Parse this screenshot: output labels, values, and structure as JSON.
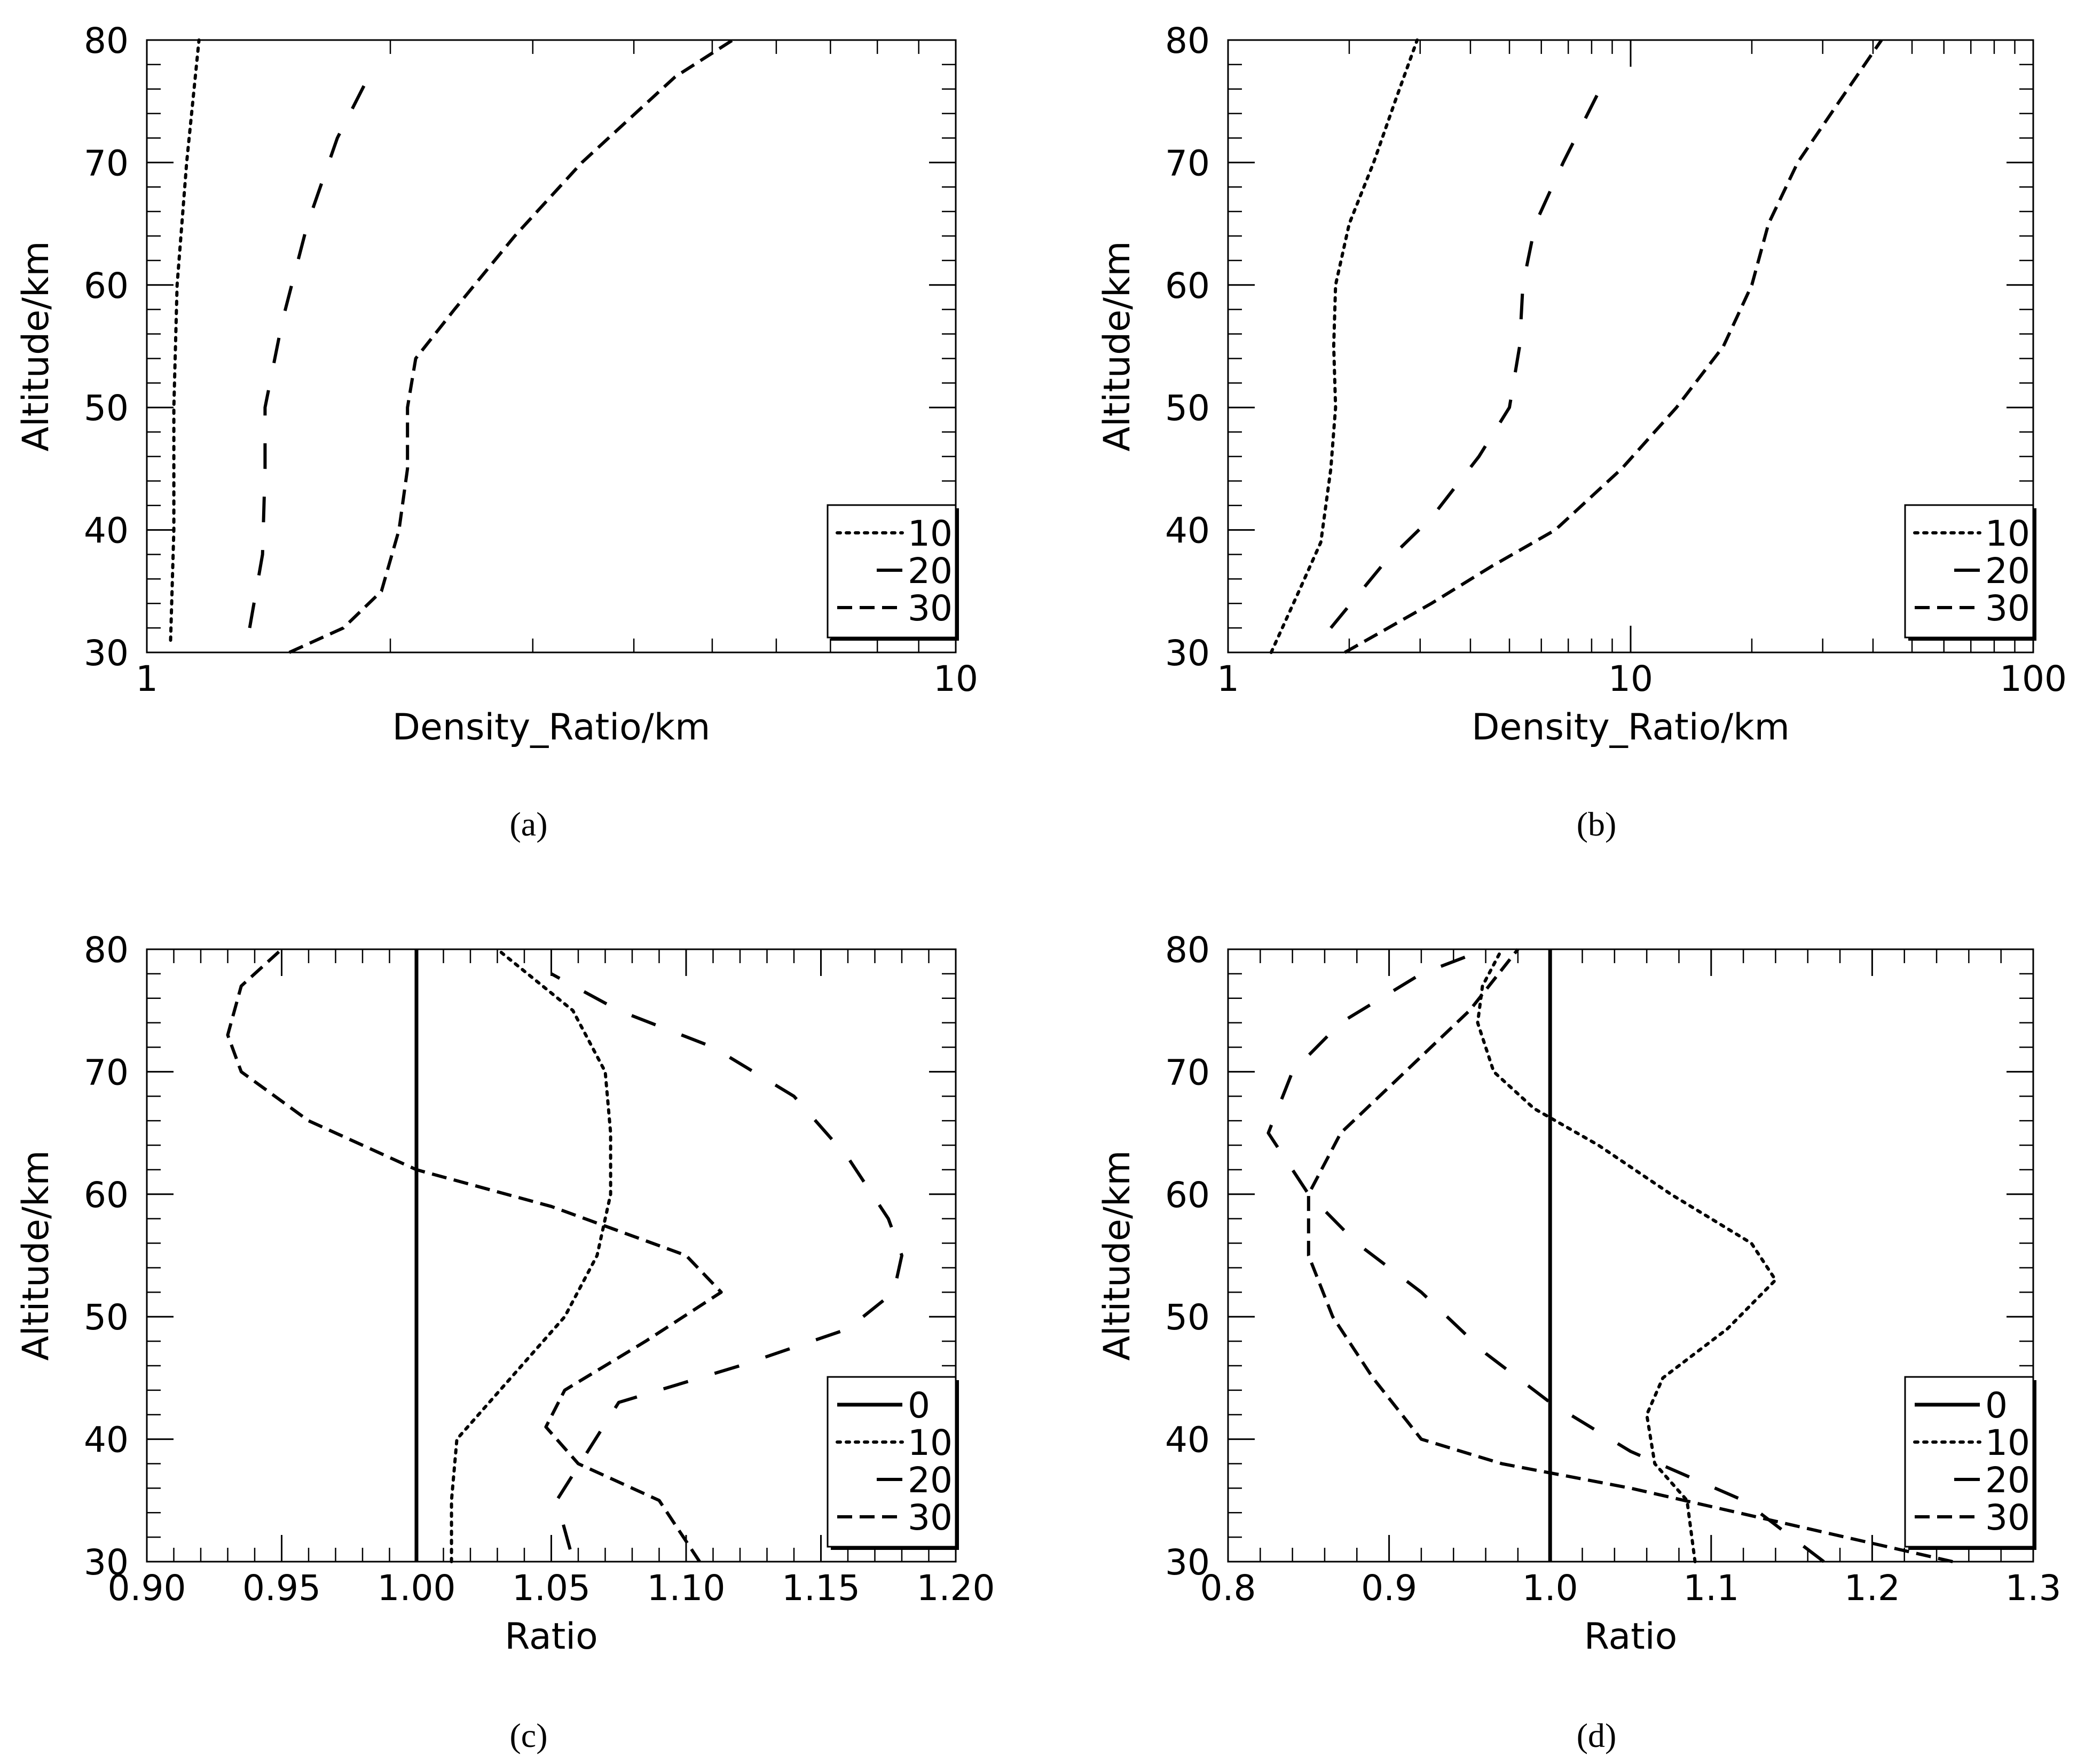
{
  "figure": {
    "panel_labels": [
      "(a)",
      "(b)",
      "(c)",
      "(d)"
    ],
    "panel_letters": [
      "a",
      "b",
      "c",
      "d"
    ]
  },
  "chart_data": [
    {
      "id": "a",
      "type": "line",
      "title": "",
      "xlabel": "Density_Ratio/km",
      "ylabel": "Altitude/km",
      "xscale": "log",
      "xlim": [
        1,
        10
      ],
      "ylim": [
        30,
        80
      ],
      "xticks": [
        1,
        10
      ],
      "xtick_labels": [
        "1",
        "10"
      ],
      "yticks": [
        30,
        40,
        50,
        60,
        70,
        80
      ],
      "ytick_labels": [
        "30",
        "40",
        "50",
        "60",
        "70",
        "80"
      ],
      "legend_position": "bottom-right",
      "grid": false,
      "series": [
        {
          "name": "10",
          "style": "dotted",
          "points": [
            [
              1.07,
              31
            ],
            [
              1.08,
              40
            ],
            [
              1.08,
              50
            ],
            [
              1.09,
              60
            ],
            [
              1.12,
              70
            ],
            [
              1.16,
              80
            ]
          ]
        },
        {
          "name": "20",
          "style": "long-dash",
          "points": [
            [
              1.34,
              32
            ],
            [
              1.39,
              38
            ],
            [
              1.4,
              45
            ],
            [
              1.4,
              50
            ],
            [
              1.47,
              57
            ],
            [
              1.58,
              65
            ],
            [
              1.72,
              72
            ],
            [
              1.88,
              77
            ]
          ]
        },
        {
          "name": "30",
          "style": "dashed",
          "points": [
            [
              1.5,
              30
            ],
            [
              1.75,
              32
            ],
            [
              1.95,
              35
            ],
            [
              2.05,
              40
            ],
            [
              2.1,
              45
            ],
            [
              2.1,
              50
            ],
            [
              2.15,
              54
            ],
            [
              2.4,
              58
            ],
            [
              2.85,
              64
            ],
            [
              3.45,
              70
            ],
            [
              4.5,
              77
            ],
            [
              5.3,
              80
            ]
          ]
        }
      ]
    },
    {
      "id": "b",
      "type": "line",
      "title": "",
      "xlabel": "Density_Ratio/km",
      "ylabel": "Altitude/km",
      "xscale": "log",
      "xlim": [
        1,
        100
      ],
      "ylim": [
        30,
        80
      ],
      "xticks": [
        1,
        10,
        100
      ],
      "xtick_labels": [
        "1",
        "10",
        "100"
      ],
      "yticks": [
        30,
        40,
        50,
        60,
        70,
        80
      ],
      "ytick_labels": [
        "30",
        "40",
        "50",
        "60",
        "70",
        "80"
      ],
      "legend_position": "bottom-right",
      "grid": false,
      "series": [
        {
          "name": "10",
          "style": "dotted",
          "points": [
            [
              1.28,
              30
            ],
            [
              1.5,
              35
            ],
            [
              1.7,
              39
            ],
            [
              1.8,
              45
            ],
            [
              1.85,
              50
            ],
            [
              1.83,
              55
            ],
            [
              1.85,
              60
            ],
            [
              2.0,
              65
            ],
            [
              2.3,
              70
            ],
            [
              2.6,
              75
            ],
            [
              2.95,
              80
            ]
          ]
        },
        {
          "name": "20",
          "style": "long-dash",
          "points": [
            [
              1.8,
              32
            ],
            [
              2.4,
              37
            ],
            [
              3.2,
              41
            ],
            [
              4.2,
              46
            ],
            [
              5.0,
              50
            ],
            [
              5.3,
              55
            ],
            [
              5.4,
              60
            ],
            [
              5.8,
              65
            ],
            [
              6.8,
              70
            ],
            [
              8.4,
              76
            ]
          ]
        },
        {
          "name": "30",
          "style": "dashed",
          "points": [
            [
              1.95,
              30
            ],
            [
              2.5,
              32
            ],
            [
              3.2,
              34
            ],
            [
              4.5,
              37
            ],
            [
              6.5,
              40
            ],
            [
              9.5,
              45
            ],
            [
              13.0,
              50
            ],
            [
              17.0,
              55
            ],
            [
              20.0,
              60
            ],
            [
              22.0,
              65
            ],
            [
              26.0,
              70
            ],
            [
              33.0,
              75
            ],
            [
              42.0,
              80
            ]
          ]
        }
      ]
    },
    {
      "id": "c",
      "type": "line",
      "title": "",
      "xlabel": "Ratio",
      "ylabel": "Altitude/km",
      "xscale": "linear",
      "xlim": [
        0.9,
        1.2
      ],
      "ylim": [
        30,
        80
      ],
      "xticks": [
        0.9,
        0.95,
        1.0,
        1.05,
        1.1,
        1.15,
        1.2
      ],
      "xtick_labels": [
        "0.90",
        "0.95",
        "1.00",
        "1.05",
        "1.10",
        "1.15",
        "1.20"
      ],
      "yticks": [
        30,
        40,
        50,
        60,
        70,
        80
      ],
      "ytick_labels": [
        "30",
        "40",
        "50",
        "60",
        "70",
        "80"
      ],
      "legend_position": "bottom-right",
      "grid": false,
      "series": [
        {
          "name": "0",
          "style": "solid",
          "points": [
            [
              1.0,
              30
            ],
            [
              1.0,
              80
            ]
          ]
        },
        {
          "name": "10",
          "style": "dotted",
          "points": [
            [
              1.013,
              30
            ],
            [
              1.013,
              35
            ],
            [
              1.015,
              40
            ],
            [
              1.035,
              45
            ],
            [
              1.055,
              50
            ],
            [
              1.067,
              55
            ],
            [
              1.072,
              60
            ],
            [
              1.072,
              65
            ],
            [
              1.07,
              70
            ],
            [
              1.058,
              75
            ],
            [
              1.03,
              80
            ]
          ]
        },
        {
          "name": "20",
          "style": "long-dash",
          "points": [
            [
              1.057,
              31
            ],
            [
              1.052,
              35
            ],
            [
              1.075,
              43
            ],
            [
              1.12,
              46
            ],
            [
              1.16,
              49
            ],
            [
              1.177,
              52
            ],
            [
              1.18,
              55
            ],
            [
              1.175,
              58
            ],
            [
              1.16,
              63
            ],
            [
              1.14,
              68
            ],
            [
              1.11,
              72
            ],
            [
              1.075,
              75
            ],
            [
              1.05,
              78
            ]
          ]
        },
        {
          "name": "30",
          "style": "dashed",
          "points": [
            [
              1.105,
              30
            ],
            [
              1.09,
              35
            ],
            [
              1.06,
              38
            ],
            [
              1.048,
              41
            ],
            [
              1.055,
              44
            ],
            [
              1.085,
              48
            ],
            [
              1.113,
              52
            ],
            [
              1.1,
              55
            ],
            [
              1.05,
              59
            ],
            [
              1.0,
              62
            ],
            [
              0.96,
              66
            ],
            [
              0.935,
              70
            ],
            [
              0.93,
              73
            ],
            [
              0.935,
              77
            ],
            [
              0.95,
              80
            ]
          ]
        }
      ]
    },
    {
      "id": "d",
      "type": "line",
      "title": "",
      "xlabel": "Ratio",
      "ylabel": "Altitude/km",
      "xscale": "linear",
      "xlim": [
        0.8,
        1.3
      ],
      "ylim": [
        30,
        80
      ],
      "xticks": [
        0.8,
        0.9,
        1.0,
        1.1,
        1.2,
        1.3
      ],
      "xtick_labels": [
        "0.8",
        "0.9",
        "1.0",
        "1.1",
        "1.2",
        "1.3"
      ],
      "yticks": [
        30,
        40,
        50,
        60,
        70,
        80
      ],
      "ytick_labels": [
        "30",
        "40",
        "50",
        "60",
        "70",
        "80"
      ],
      "legend_position": "bottom-right",
      "grid": false,
      "series": [
        {
          "name": "0",
          "style": "solid",
          "points": [
            [
              1.0,
              30
            ],
            [
              1.0,
              80
            ]
          ]
        },
        {
          "name": "10",
          "style": "dotted",
          "points": [
            [
              1.09,
              30
            ],
            [
              1.085,
              35
            ],
            [
              1.065,
              38
            ],
            [
              1.06,
              42
            ],
            [
              1.07,
              45
            ],
            [
              1.11,
              49
            ],
            [
              1.14,
              53
            ],
            [
              1.125,
              56
            ],
            [
              1.075,
              60
            ],
            [
              1.03,
              64
            ],
            [
              0.99,
              67
            ],
            [
              0.965,
              70
            ],
            [
              0.955,
              74
            ],
            [
              0.958,
              77
            ],
            [
              0.97,
              80
            ]
          ]
        },
        {
          "name": "20",
          "style": "long-dash",
          "points": [
            [
              1.17,
              30
            ],
            [
              1.12,
              35
            ],
            [
              1.05,
              39
            ],
            [
              1.0,
              43
            ],
            [
              0.96,
              47
            ],
            [
              0.92,
              52
            ],
            [
              0.88,
              56
            ],
            [
              0.85,
              60
            ],
            [
              0.825,
              65
            ],
            [
              0.84,
              70
            ],
            [
              0.87,
              74
            ],
            [
              0.92,
              78
            ],
            [
              0.96,
              80
            ]
          ]
        },
        {
          "name": "30",
          "style": "dashed",
          "points": [
            [
              1.25,
              30
            ],
            [
              1.15,
              33
            ],
            [
              1.05,
              36
            ],
            [
              0.97,
              38
            ],
            [
              0.92,
              40
            ],
            [
              0.89,
              45
            ],
            [
              0.865,
              50
            ],
            [
              0.85,
              55
            ],
            [
              0.85,
              60
            ],
            [
              0.87,
              65
            ],
            [
              0.91,
              70
            ],
            [
              0.95,
              75
            ],
            [
              0.98,
              80
            ]
          ]
        }
      ]
    }
  ]
}
